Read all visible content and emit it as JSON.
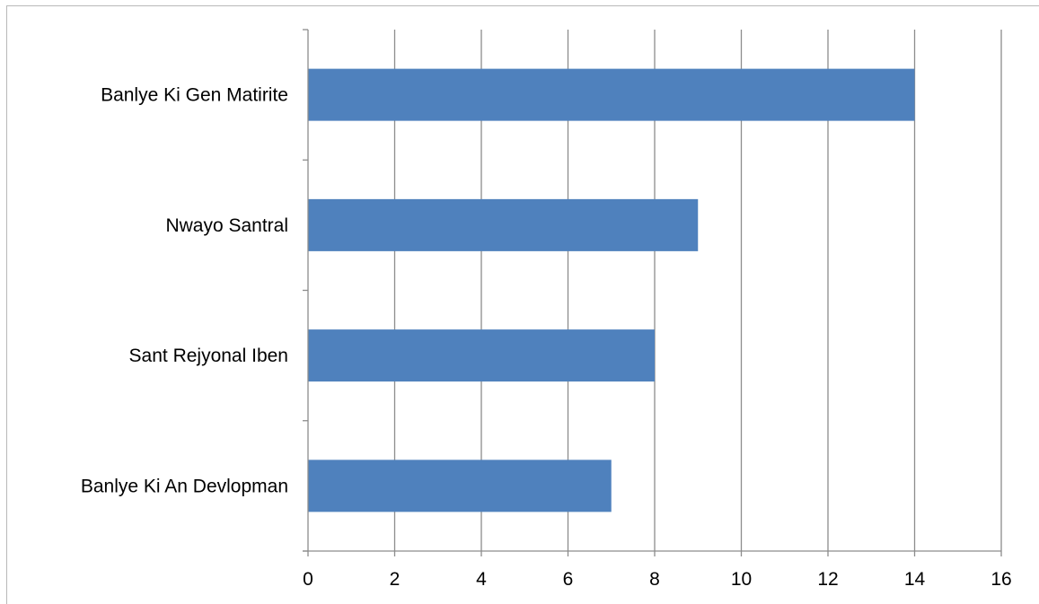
{
  "chart_data": {
    "type": "bar",
    "orientation": "horizontal",
    "title": "",
    "xlabel": "",
    "ylabel": "",
    "categories": [
      "Banlye Ki Gen Matirite",
      "Nwayo Santral",
      "Sant Rejyonal Iben",
      "Banlye Ki An Devlopman"
    ],
    "values": [
      14,
      9,
      8,
      7
    ],
    "xlim": [
      0,
      16
    ],
    "x_ticks": [
      0,
      2,
      4,
      6,
      8,
      10,
      12,
      14,
      16
    ],
    "grid": "vertical",
    "legend": "none",
    "bar_color": "#4f81bd",
    "grid_color": "#8c8c8c"
  }
}
